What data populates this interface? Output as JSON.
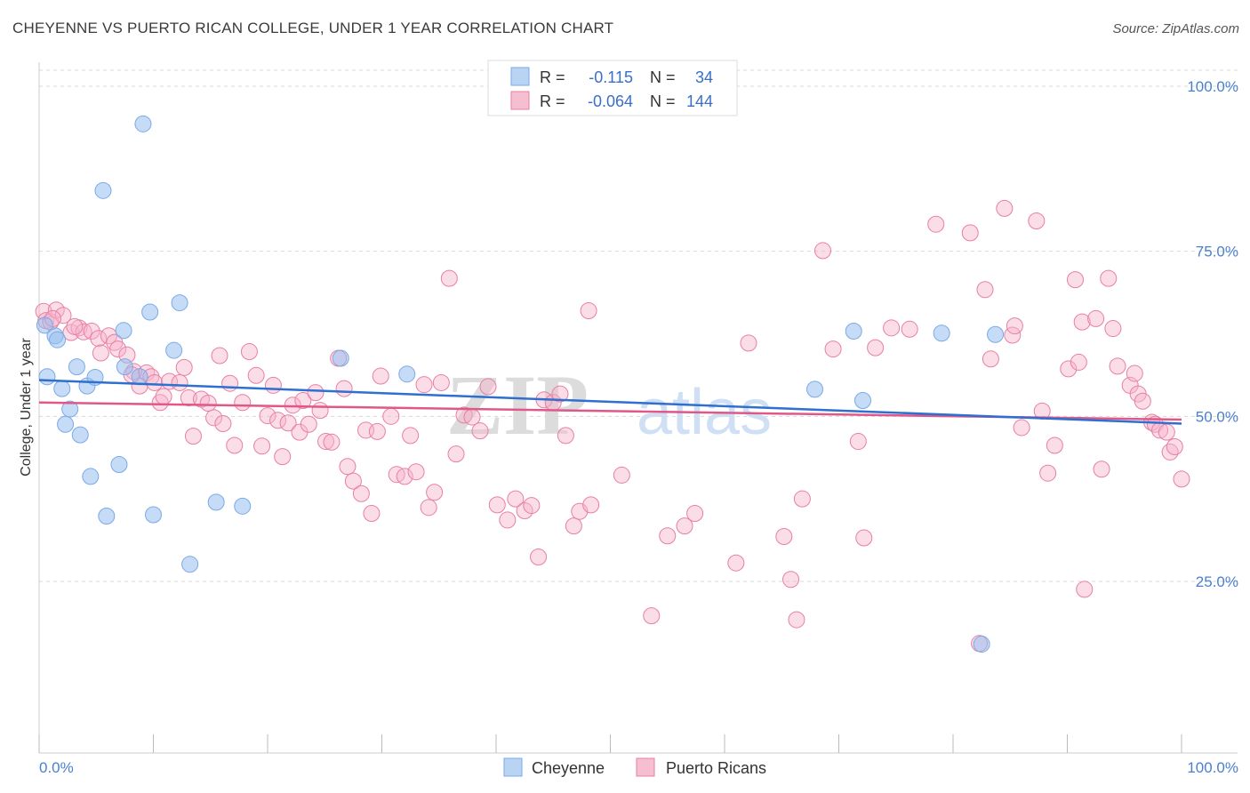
{
  "title": "CHEYENNE VS PUERTO RICAN COLLEGE, UNDER 1 YEAR CORRELATION CHART",
  "source": "Source: ZipAtlas.com",
  "chart_data": {
    "type": "scatter",
    "xlabel": "",
    "ylabel": "College, Under 1 year",
    "xlim": [
      0,
      100
    ],
    "ylim": [
      0,
      105
    ],
    "x_tick_labels": [
      "0.0%",
      "100.0%"
    ],
    "y_ticks": [
      25,
      50,
      75,
      100
    ],
    "y_tick_labels": [
      "25.0%",
      "50.0%",
      "75.0%",
      "100.0%"
    ],
    "grid": true,
    "watermark": {
      "zip": "ZIP",
      "atlas": "atlas"
    },
    "legend": {
      "r_label": "R =",
      "n_label": "N =",
      "entries": [
        {
          "name": "Cheyenne",
          "r": "-0.115",
          "n": "34",
          "color": "#7aaae8",
          "fill": "#b9d3f3"
        },
        {
          "name": "Puerto Ricans",
          "r": "-0.064",
          "n": "144",
          "color": "#e87fa3",
          "fill": "#f6bfd1"
        }
      ]
    },
    "series": [
      {
        "name": "Cheyenne",
        "color": "#7aaae8",
        "trend": {
          "x": [
            0,
            100
          ],
          "y": [
            55.5,
            48.9
          ]
        },
        "points": [
          [
            0.5,
            63.8
          ],
          [
            0.7,
            56.0
          ],
          [
            1.4,
            62.2
          ],
          [
            1.6,
            61.6
          ],
          [
            2.0,
            54.2
          ],
          [
            2.3,
            48.8
          ],
          [
            2.7,
            51.1
          ],
          [
            3.3,
            57.5
          ],
          [
            3.6,
            47.2
          ],
          [
            4.2,
            54.6
          ],
          [
            4.5,
            40.9
          ],
          [
            4.9,
            55.9
          ],
          [
            5.6,
            84.2
          ],
          [
            5.9,
            34.9
          ],
          [
            7.0,
            42.7
          ],
          [
            7.4,
            63.0
          ],
          [
            7.5,
            57.5
          ],
          [
            8.8,
            56.0
          ],
          [
            9.1,
            94.3
          ],
          [
            9.7,
            65.8
          ],
          [
            10.0,
            35.1
          ],
          [
            11.8,
            60.0
          ],
          [
            12.3,
            67.2
          ],
          [
            13.2,
            27.6
          ],
          [
            15.5,
            37.0
          ],
          [
            17.8,
            36.4
          ],
          [
            26.4,
            58.8
          ],
          [
            32.2,
            56.4
          ],
          [
            67.9,
            54.1
          ],
          [
            71.3,
            62.9
          ],
          [
            72.1,
            52.4
          ],
          [
            79.0,
            62.6
          ],
          [
            82.5,
            15.5
          ],
          [
            83.7,
            62.4
          ]
        ]
      },
      {
        "name": "Puerto Ricans",
        "color": "#e87fa3",
        "trend": {
          "x": [
            0,
            100
          ],
          "y": [
            52.1,
            49.5
          ]
        },
        "points": [
          [
            0.4,
            65.9
          ],
          [
            0.6,
            64.5
          ],
          [
            1.0,
            64.3
          ],
          [
            1.5,
            66.1
          ],
          [
            2.1,
            65.3
          ],
          [
            2.8,
            62.7
          ],
          [
            3.5,
            63.4
          ],
          [
            3.9,
            62.8
          ],
          [
            4.6,
            62.9
          ],
          [
            5.2,
            61.8
          ],
          [
            5.4,
            59.6
          ],
          [
            6.1,
            62.2
          ],
          [
            6.6,
            61.2
          ],
          [
            6.9,
            60.2
          ],
          [
            7.7,
            59.3
          ],
          [
            8.3,
            56.8
          ],
          [
            8.8,
            54.6
          ],
          [
            9.4,
            56.6
          ],
          [
            9.8,
            56.0
          ],
          [
            10.1,
            55.1
          ],
          [
            10.6,
            52.1
          ],
          [
            10.9,
            53.0
          ],
          [
            11.4,
            55.3
          ],
          [
            12.3,
            55.1
          ],
          [
            12.7,
            57.4
          ],
          [
            13.1,
            52.8
          ],
          [
            13.5,
            47.0
          ],
          [
            14.2,
            52.6
          ],
          [
            14.8,
            52.0
          ],
          [
            15.3,
            49.8
          ],
          [
            15.8,
            59.2
          ],
          [
            16.1,
            48.9
          ],
          [
            16.7,
            55.0
          ],
          [
            17.1,
            45.6
          ],
          [
            17.8,
            52.1
          ],
          [
            18.4,
            59.8
          ],
          [
            19.0,
            56.2
          ],
          [
            19.5,
            45.5
          ],
          [
            20.0,
            50.1
          ],
          [
            20.5,
            54.7
          ],
          [
            20.9,
            49.4
          ],
          [
            21.3,
            43.9
          ],
          [
            21.8,
            49.0
          ],
          [
            22.2,
            51.7
          ],
          [
            22.8,
            47.6
          ],
          [
            23.1,
            52.4
          ],
          [
            23.6,
            48.8
          ],
          [
            24.2,
            53.6
          ],
          [
            24.6,
            50.9
          ],
          [
            25.1,
            46.2
          ],
          [
            25.6,
            46.1
          ],
          [
            26.2,
            58.8
          ],
          [
            26.7,
            54.2
          ],
          [
            27.0,
            42.4
          ],
          [
            27.5,
            40.2
          ],
          [
            28.2,
            38.3
          ],
          [
            28.6,
            47.9
          ],
          [
            29.1,
            35.3
          ],
          [
            29.6,
            47.7
          ],
          [
            29.9,
            56.1
          ],
          [
            30.8,
            50.0
          ],
          [
            31.3,
            41.2
          ],
          [
            32.0,
            40.9
          ],
          [
            32.5,
            47.1
          ],
          [
            33.0,
            41.6
          ],
          [
            33.7,
            54.8
          ],
          [
            34.1,
            36.2
          ],
          [
            34.6,
            38.5
          ],
          [
            35.2,
            55.1
          ],
          [
            35.9,
            70.9
          ],
          [
            36.5,
            44.3
          ],
          [
            37.2,
            50.2
          ],
          [
            37.9,
            49.9
          ],
          [
            38.6,
            47.8
          ],
          [
            39.3,
            54.5
          ],
          [
            40.1,
            36.6
          ],
          [
            41.0,
            34.3
          ],
          [
            41.7,
            37.5
          ],
          [
            42.5,
            35.7
          ],
          [
            43.1,
            36.5
          ],
          [
            43.7,
            28.7
          ],
          [
            44.2,
            52.5
          ],
          [
            45.0,
            52.1
          ],
          [
            45.6,
            53.4
          ],
          [
            46.1,
            47.1
          ],
          [
            46.8,
            33.4
          ],
          [
            47.3,
            35.6
          ],
          [
            48.1,
            66.0
          ],
          [
            48.3,
            36.6
          ],
          [
            51.0,
            41.1
          ],
          [
            53.6,
            19.8
          ],
          [
            55.0,
            31.9
          ],
          [
            56.5,
            33.4
          ],
          [
            57.4,
            35.3
          ],
          [
            61.0,
            27.8
          ],
          [
            62.1,
            61.1
          ],
          [
            65.2,
            31.8
          ],
          [
            65.8,
            25.3
          ],
          [
            66.3,
            19.2
          ],
          [
            66.8,
            37.5
          ],
          [
            68.6,
            75.1
          ],
          [
            69.5,
            60.2
          ],
          [
            71.7,
            46.2
          ],
          [
            72.2,
            31.6
          ],
          [
            73.2,
            60.4
          ],
          [
            74.6,
            63.4
          ],
          [
            76.2,
            63.2
          ],
          [
            78.5,
            79.1
          ],
          [
            81.5,
            77.8
          ],
          [
            82.3,
            15.6
          ],
          [
            82.8,
            69.2
          ],
          [
            83.3,
            58.7
          ],
          [
            84.5,
            81.5
          ],
          [
            85.2,
            62.3
          ],
          [
            85.4,
            63.7
          ],
          [
            86.0,
            48.3
          ],
          [
            87.3,
            79.6
          ],
          [
            87.8,
            50.8
          ],
          [
            88.3,
            41.4
          ],
          [
            88.9,
            45.6
          ],
          [
            90.1,
            57.2
          ],
          [
            90.7,
            70.7
          ],
          [
            91.0,
            58.2
          ],
          [
            91.3,
            64.3
          ],
          [
            91.5,
            23.8
          ],
          [
            92.5,
            64.8
          ],
          [
            93.0,
            42.0
          ],
          [
            93.6,
            70.9
          ],
          [
            94.0,
            63.3
          ],
          [
            94.4,
            57.6
          ],
          [
            95.5,
            54.7
          ],
          [
            95.9,
            56.5
          ],
          [
            96.2,
            53.4
          ],
          [
            96.6,
            52.3
          ],
          [
            97.4,
            49.1
          ],
          [
            97.7,
            48.8
          ],
          [
            98.1,
            47.9
          ],
          [
            98.7,
            47.6
          ],
          [
            99.0,
            44.6
          ],
          [
            99.4,
            45.4
          ],
          [
            100.0,
            40.5
          ],
          [
            1.2,
            64.8
          ],
          [
            3.1,
            63.6
          ],
          [
            8.1,
            56.3
          ]
        ]
      }
    ]
  }
}
